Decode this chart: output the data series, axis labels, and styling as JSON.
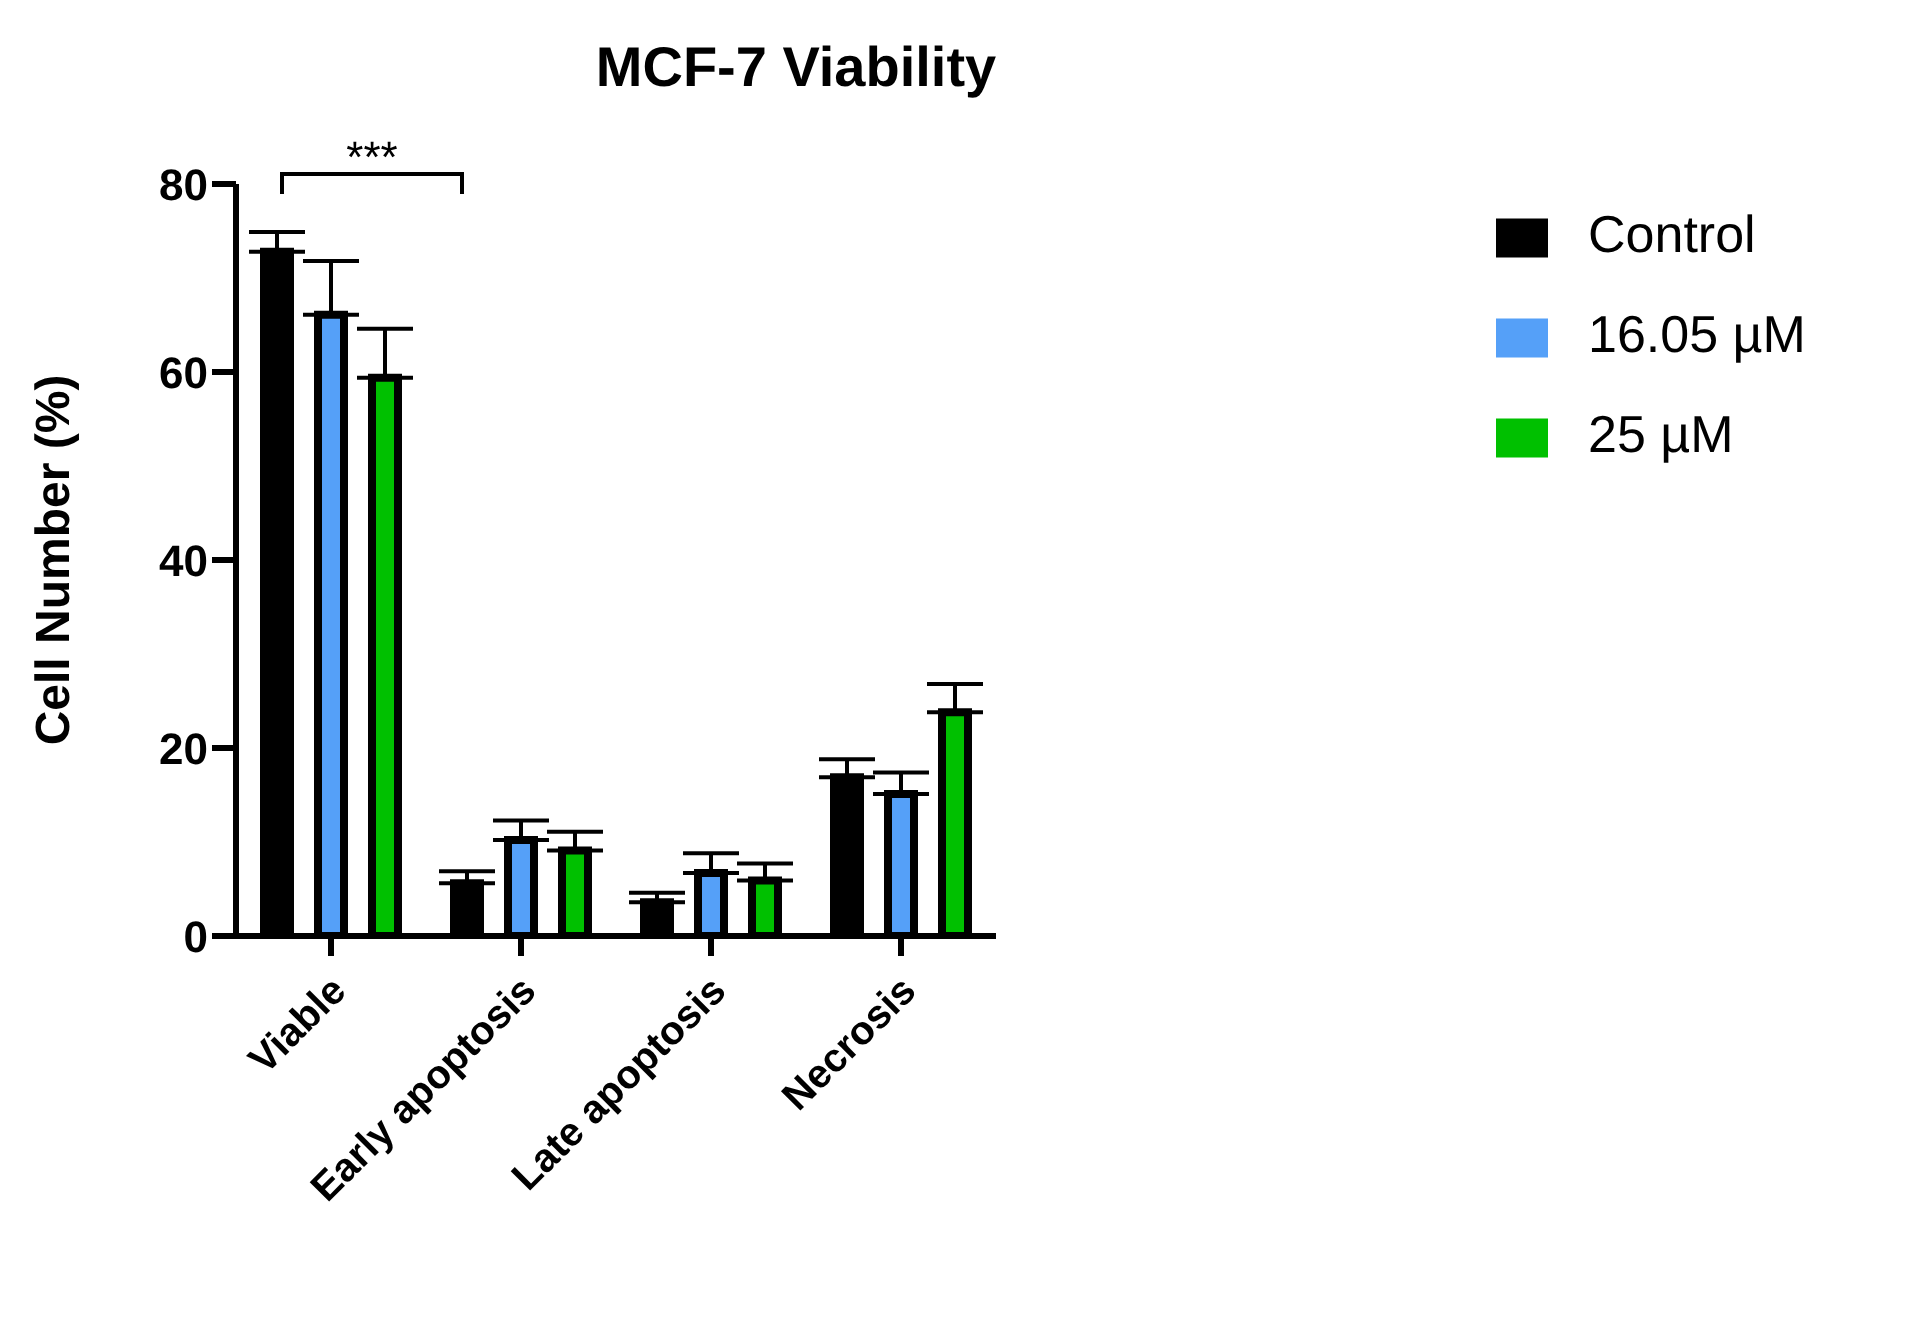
{
  "chart_data": {
    "type": "bar",
    "title": "MCF-7 Viability",
    "ylabel": "Cell Number (%)",
    "categories": [
      "Viable",
      "Early apoptosis",
      "Late apoptosis",
      "Necrosis"
    ],
    "series": [
      {
        "name": "Control",
        "color": "#000000",
        "values": [
          72.8,
          5.6,
          3.6,
          16.9
        ],
        "errors": [
          [
            72.8,
            74.9
          ],
          [
            5.6,
            6.9
          ],
          [
            3.6,
            4.6
          ],
          [
            16.9,
            18.8
          ]
        ]
      },
      {
        "name": "16.05 µM",
        "color": "#55a0f8",
        "values": [
          66.1,
          10.2,
          6.7,
          15.1
        ],
        "errors": [
          [
            66.1,
            71.8
          ],
          [
            10.2,
            12.3
          ],
          [
            6.7,
            8.8
          ],
          [
            15.1,
            17.4
          ]
        ]
      },
      {
        "name": "25 µM",
        "color": "#00c000",
        "values": [
          59.4,
          9.1,
          5.9,
          23.8
        ],
        "errors": [
          [
            59.4,
            64.6
          ],
          [
            9.1,
            11.1
          ],
          [
            5.9,
            7.7
          ],
          [
            23.8,
            26.8
          ]
        ]
      }
    ],
    "ylim": [
      0,
      80
    ],
    "yticks": [
      0,
      20,
      40,
      60,
      80
    ],
    "grid": false,
    "legend": "top right",
    "annotations": [
      "***"
    ]
  }
}
